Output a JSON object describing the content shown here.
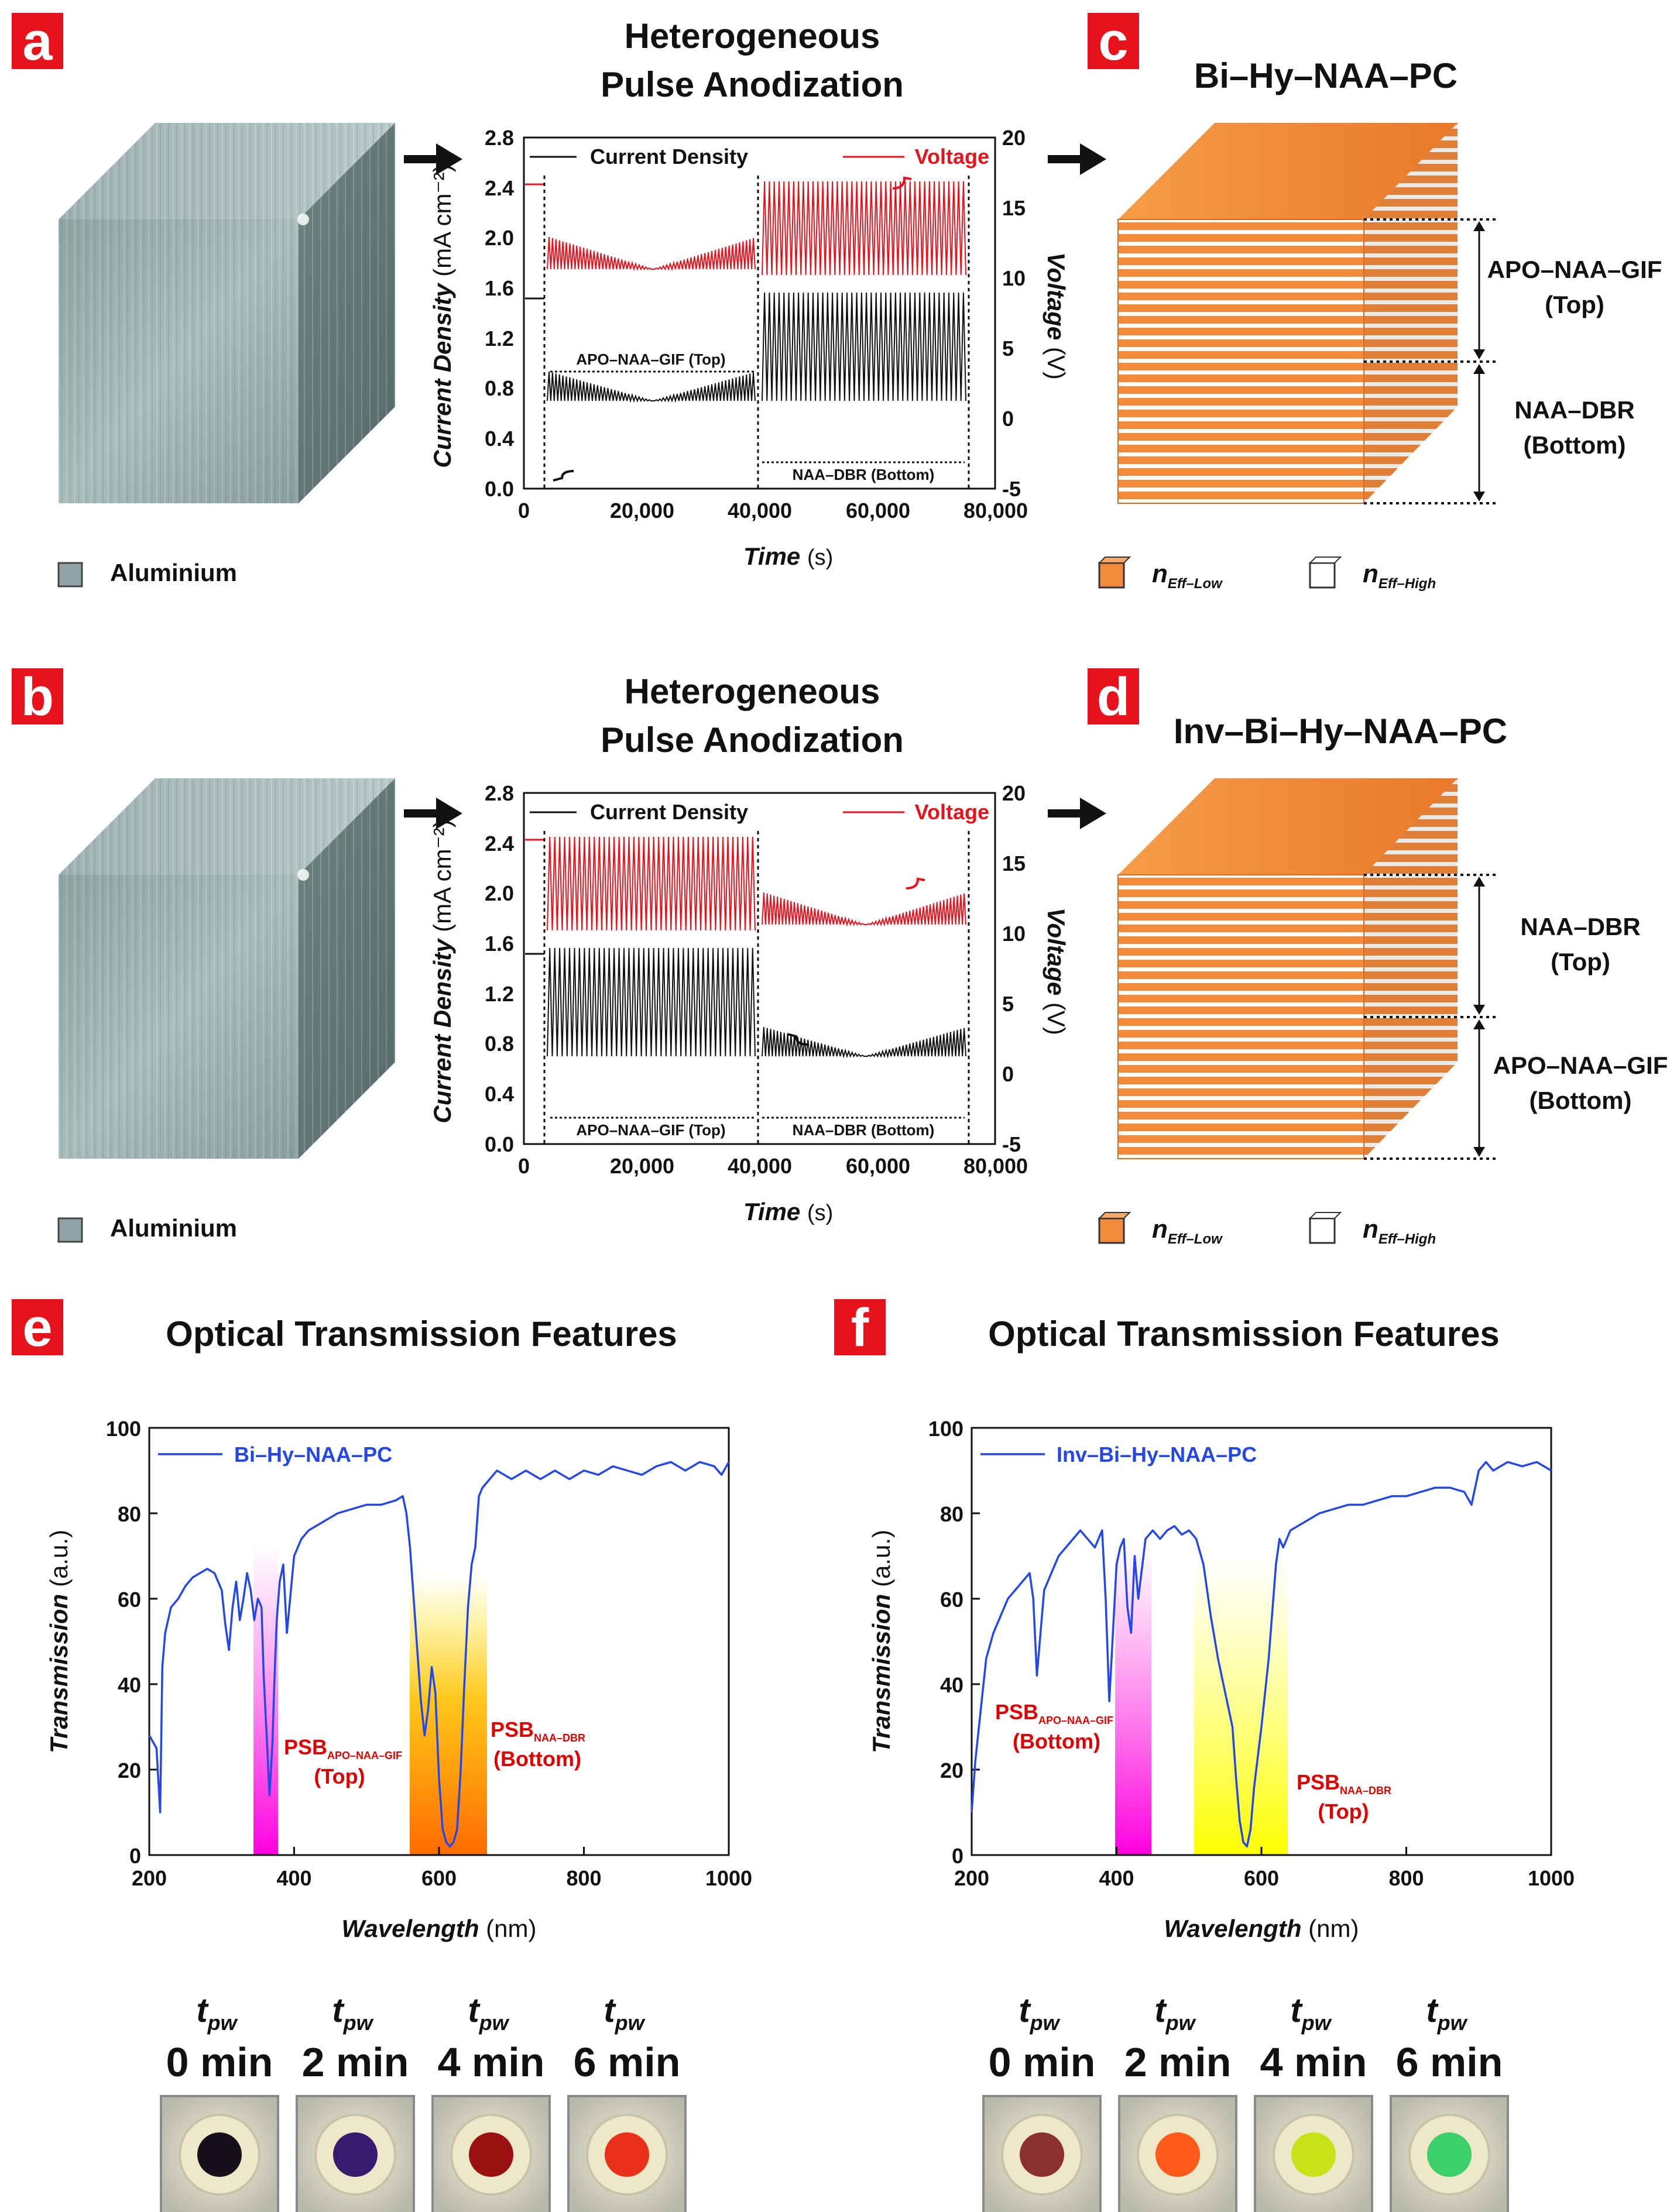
{
  "panels": {
    "a": {
      "badge": "a",
      "title_line1": "Heterogeneous",
      "title_line2": "Pulse Anodization",
      "legend_label": "Aluminium",
      "plot": {
        "legend_current": "Current Density",
        "legend_voltage": "Voltage",
        "ylabel": "Current Density",
        "ylabel_unit": "(mA cm⁻²)",
        "y2label": "Voltage",
        "y2label_unit": "(V)",
        "xlabel": "Time",
        "xlabel_unit": "(s)",
        "yticks": [
          "0.0",
          "0.4",
          "0.8",
          "1.2",
          "1.6",
          "2.0",
          "2.4",
          "2.8"
        ],
        "y2ticks": [
          "-5",
          "0",
          "5",
          "10",
          "15",
          "20"
        ],
        "xticks": [
          "0",
          "20,000",
          "40,000",
          "60,000",
          "80,000"
        ],
        "seg1_label": "APO–NAA–GIF (Top)",
        "seg2_label": "NAA–DBR (Bottom)"
      }
    },
    "b": {
      "badge": "b",
      "title_line1": "Heterogeneous",
      "title_line2": "Pulse Anodization",
      "legend_label": "Aluminium",
      "plot": {
        "legend_current": "Current Density",
        "legend_voltage": "Voltage",
        "ylabel": "Current Density",
        "ylabel_unit": "(mA cm⁻²)",
        "y2label": "Voltage",
        "y2label_unit": "(V)",
        "xlabel": "Time",
        "xlabel_unit": "(s)",
        "yticks": [
          "0.0",
          "0.4",
          "0.8",
          "1.2",
          "1.6",
          "2.0",
          "2.4",
          "2.8"
        ],
        "y2ticks": [
          "-5",
          "0",
          "5",
          "10",
          "15",
          "20"
        ],
        "xticks": [
          "0",
          "20,000",
          "40,000",
          "60,000",
          "80,000"
        ],
        "seg1_label": "APO–NAA–GIF (Top)",
        "seg2_label": "NAA–DBR (Bottom)"
      }
    },
    "c": {
      "badge": "c",
      "title": "Bi–Hy–NAA–PC",
      "upper_label_1": "APO–NAA–GIF",
      "upper_label_2": "(Top)",
      "lower_label_1": "NAA–DBR",
      "lower_label_2": "(Bottom)",
      "legend_low": "n",
      "legend_low_sub": "Eff–Low",
      "legend_high": "n",
      "legend_high_sub": "Eff–High"
    },
    "d": {
      "badge": "d",
      "title": "Inv–Bi–Hy–NAA–PC",
      "upper_label_1": "NAA–DBR",
      "upper_label_2": "(Top)",
      "lower_label_1": "APO–NAA–GIF",
      "lower_label_2": "(Bottom)",
      "legend_low": "n",
      "legend_low_sub": "Eff–Low",
      "legend_high": "n",
      "legend_high_sub": "Eff–High"
    },
    "e": {
      "badge": "e",
      "title": "Optical Transmission Features",
      "legend": "Bi–Hy–NAA–PC",
      "psb1": "PSB",
      "psb1_sub": "APO–NAA–GIF",
      "psb1_pos": "(Top)",
      "psb2": "PSB",
      "psb2_sub": "NAA–DBR",
      "psb2_pos": "(Bottom)",
      "photos": [
        {
          "tpw": "t",
          "tpw_sub": "pw",
          "time": "0 min",
          "dot": "#15101a"
        },
        {
          "tpw": "t",
          "tpw_sub": "pw",
          "time": "2 min",
          "dot": "#3a1a6e"
        },
        {
          "tpw": "t",
          "tpw_sub": "pw",
          "time": "4 min",
          "dot": "#9a1010"
        },
        {
          "tpw": "t",
          "tpw_sub": "pw",
          "time": "6 min",
          "dot": "#e8301a"
        }
      ]
    },
    "f": {
      "badge": "f",
      "title": "Optical Transmission Features",
      "legend": "Inv–Bi–Hy–NAA–PC",
      "psb1": "PSB",
      "psb1_sub": "APO–NAA–GIF",
      "psb1_pos": "(Bottom)",
      "psb2": "PSB",
      "psb2_sub": "NAA–DBR",
      "psb2_pos": "(Top)",
      "photos": [
        {
          "tpw": "t",
          "tpw_sub": "pw",
          "time": "0 min",
          "dot": "#8a3030"
        },
        {
          "tpw": "t",
          "tpw_sub": "pw",
          "time": "2 min",
          "dot": "#ff5a1a"
        },
        {
          "tpw": "t",
          "tpw_sub": "pw",
          "time": "4 min",
          "dot": "#c8e21a"
        },
        {
          "tpw": "t",
          "tpw_sub": "pw",
          "time": "6 min",
          "dot": "#3ccf6a"
        }
      ]
    }
  },
  "chart_data": [
    {
      "id": "e",
      "type": "line",
      "title": "Optical Transmission Features",
      "xlabel": "Wavelength",
      "xunit": "(nm)",
      "ylabel": "Transmission",
      "yunit": "(a.u.)",
      "xlim": [
        200,
        1000
      ],
      "ylim": [
        0,
        100
      ],
      "xticks": [
        200,
        400,
        600,
        800,
        1000
      ],
      "yticks": [
        0,
        20,
        40,
        60,
        80,
        100
      ],
      "series": [
        {
          "name": "Bi–Hy–NAA–PC",
          "color": "#2448e8",
          "x": [
            200,
            210,
            215,
            218,
            222,
            230,
            240,
            250,
            260,
            270,
            280,
            290,
            300,
            305,
            310,
            315,
            320,
            325,
            330,
            335,
            340,
            345,
            350,
            355,
            358,
            362,
            366,
            370,
            373,
            376,
            380,
            385,
            390,
            400,
            410,
            420,
            440,
            460,
            480,
            500,
            520,
            540,
            550,
            555,
            560,
            565,
            570,
            575,
            580,
            585,
            590,
            595,
            600,
            605,
            610,
            615,
            620,
            625,
            630,
            635,
            640,
            645,
            650,
            655,
            660,
            670,
            680,
            690,
            700,
            720,
            740,
            760,
            780,
            800,
            820,
            840,
            860,
            880,
            900,
            920,
            940,
            960,
            980,
            990,
            1000
          ],
          "y": [
            28,
            25,
            10,
            44,
            52,
            58,
            60,
            63,
            65,
            66,
            67,
            66,
            62,
            54,
            48,
            58,
            64,
            55,
            60,
            66,
            62,
            55,
            60,
            58,
            42,
            28,
            14,
            26,
            42,
            55,
            64,
            68,
            52,
            70,
            74,
            76,
            78,
            80,
            81,
            82,
            82,
            83,
            84,
            80,
            72,
            60,
            48,
            36,
            28,
            34,
            44,
            38,
            18,
            6,
            3,
            2,
            3,
            6,
            20,
            40,
            58,
            68,
            72,
            84,
            86,
            88,
            90,
            89,
            88,
            90,
            88,
            90,
            88,
            90,
            89,
            91,
            90,
            89,
            91,
            92,
            90,
            92,
            91,
            89,
            92
          ]
        }
      ]
    },
    {
      "id": "f",
      "type": "line",
      "title": "Optical Transmission Features",
      "xlabel": "Wavelength",
      "xunit": "(nm)",
      "ylabel": "Transmission",
      "yunit": "(a.u.)",
      "xlim": [
        200,
        1000
      ],
      "ylim": [
        0,
        100
      ],
      "xticks": [
        200,
        400,
        600,
        800,
        1000
      ],
      "yticks": [
        0,
        20,
        40,
        60,
        80,
        100
      ],
      "series": [
        {
          "name": "Inv–Bi–Hy–NAA–PC",
          "color": "#2448e8",
          "x": [
            200,
            205,
            210,
            220,
            230,
            240,
            250,
            260,
            270,
            280,
            285,
            290,
            295,
            300,
            310,
            320,
            330,
            340,
            350,
            360,
            370,
            380,
            385,
            390,
            395,
            400,
            405,
            410,
            415,
            420,
            425,
            430,
            440,
            450,
            460,
            470,
            480,
            490,
            500,
            510,
            520,
            530,
            540,
            550,
            560,
            565,
            570,
            575,
            580,
            585,
            590,
            600,
            610,
            620,
            625,
            630,
            640,
            660,
            680,
            700,
            720,
            740,
            760,
            780,
            800,
            820,
            840,
            860,
            880,
            890,
            900,
            910,
            920,
            940,
            960,
            980,
            1000
          ],
          "y": [
            10,
            22,
            30,
            46,
            52,
            56,
            60,
            62,
            64,
            66,
            60,
            42,
            52,
            62,
            66,
            70,
            72,
            74,
            76,
            74,
            72,
            76,
            60,
            36,
            52,
            68,
            72,
            74,
            58,
            52,
            70,
            60,
            74,
            76,
            74,
            76,
            77,
            75,
            76,
            74,
            68,
            56,
            46,
            38,
            30,
            18,
            8,
            3,
            2,
            6,
            16,
            30,
            46,
            68,
            74,
            72,
            76,
            78,
            80,
            81,
            82,
            82,
            83,
            84,
            84,
            85,
            86,
            86,
            85,
            82,
            90,
            92,
            90,
            92,
            91,
            92,
            90
          ]
        }
      ]
    }
  ]
}
